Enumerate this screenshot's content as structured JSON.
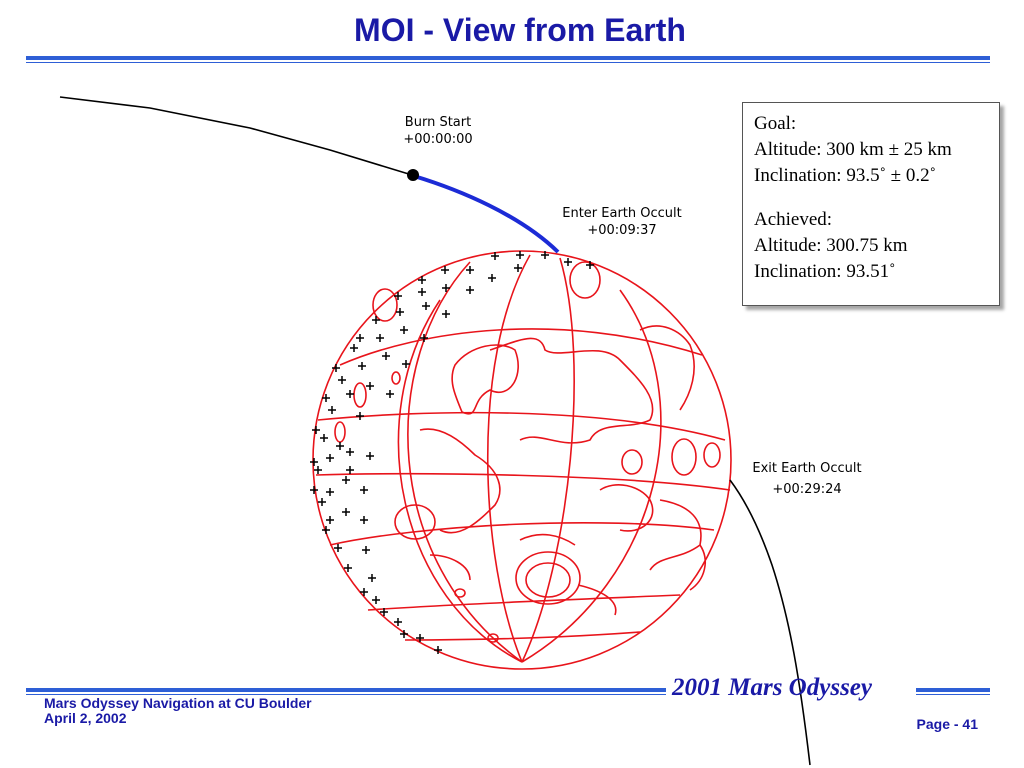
{
  "slide": {
    "title": "MOI - View from Earth"
  },
  "diagram": {
    "labels": {
      "burn_start": {
        "name": "Burn Start",
        "time": "+00:00:00"
      },
      "enter_occult": {
        "name": "Enter Earth Occult",
        "time": "+00:09:37"
      },
      "exit_occult": {
        "name": "Exit Earth Occult",
        "time": "+00:29:24"
      }
    },
    "colors": {
      "planet_lines": "#e8141b",
      "trajectory": "#000000",
      "burn_arc": "#1c2bd6",
      "markers": "#000000"
    }
  },
  "results": {
    "goal_heading": "Goal:",
    "goal_altitude": "Altitude: 300 km ± 25 km",
    "goal_inclination": "Inclination: 93.5˚ ± 0.2˚",
    "achieved_heading": "Achieved:",
    "achieved_altitude": "Altitude: 300.75 km",
    "achieved_inclination": "Inclination: 93.51˚"
  },
  "footer": {
    "brand": "2001 Mars Odyssey",
    "org": "Mars Odyssey Navigation at CU Boulder",
    "date": "April 2, 2002",
    "page": "Page - 41"
  }
}
